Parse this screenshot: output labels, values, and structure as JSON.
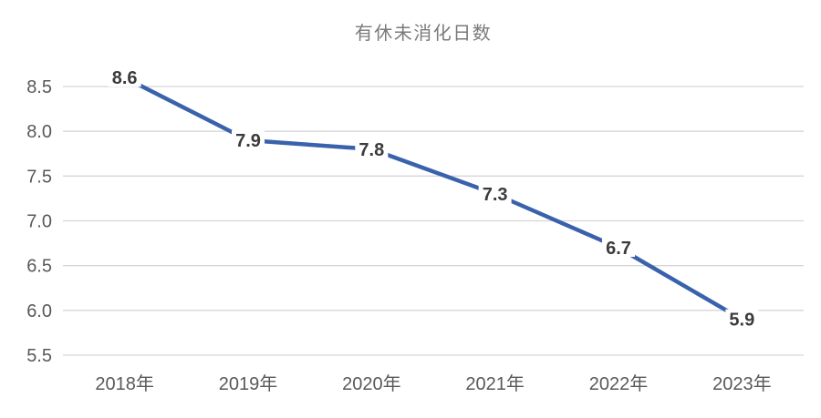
{
  "chart_data": {
    "type": "line",
    "title": "有休未消化日数",
    "categories": [
      "2018年",
      "2019年",
      "2020年",
      "2021年",
      "2022年",
      "2023年"
    ],
    "series": [
      {
        "name": "有休未消化日数",
        "values": [
          8.6,
          7.9,
          7.8,
          7.3,
          6.7,
          5.9
        ]
      }
    ],
    "data_labels": [
      "8.6",
      "7.9",
      "7.8",
      "7.3",
      "6.7",
      "5.9"
    ],
    "xlabel": "",
    "ylabel": "",
    "ylim": [
      5.5,
      8.5
    ],
    "ytick_step": 0.5,
    "ytick_labels": [
      "5.5",
      "6.0",
      "6.5",
      "7.0",
      "7.5",
      "8.0",
      "8.5"
    ],
    "grid": true,
    "legend": "none",
    "colors": {
      "line": "#3A62AC",
      "gridline": "#D6D6D6",
      "axis_label": "#595959",
      "title": "#7A7A7A",
      "data_label": "#3B3B3B",
      "background": "#FFFFFF"
    }
  }
}
